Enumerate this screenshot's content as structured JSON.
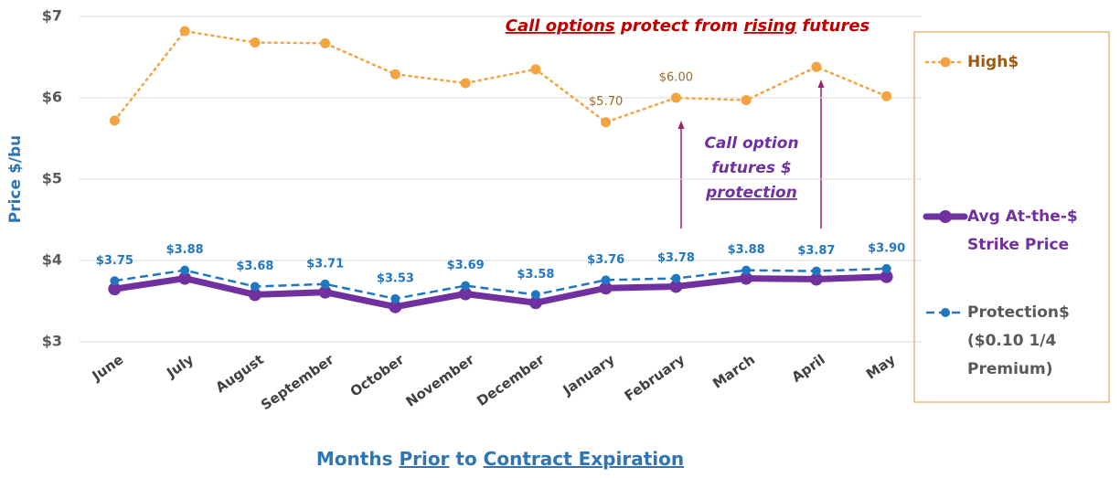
{
  "chart_data": {
    "type": "line",
    "y_label": "Price $/bu",
    "x_label_parts": [
      {
        "text": "Months "
      },
      {
        "text": "Prior",
        "underline": true
      },
      {
        "text": " to "
      },
      {
        "text": "Contract Expiration",
        "underline": true
      }
    ],
    "categories": [
      "June",
      "July",
      "August",
      "September",
      "October",
      "November",
      "December",
      "January",
      "February",
      "March",
      "April",
      "May"
    ],
    "ylim": [
      3,
      7
    ],
    "yticks": [
      {
        "value": 3,
        "label": "$3"
      },
      {
        "value": 4,
        "label": "$4"
      },
      {
        "value": 5,
        "label": "$5"
      },
      {
        "value": 6,
        "label": "$6"
      },
      {
        "value": 7,
        "label": "$7"
      }
    ],
    "grid": true,
    "series": [
      {
        "name": "High$",
        "color": "#f4a340",
        "dash": "dotted",
        "values": [
          5.72,
          6.82,
          6.68,
          6.67,
          6.29,
          6.18,
          6.35,
          5.7,
          6.0,
          5.97,
          6.38,
          6.02
        ],
        "value_labels": [
          null,
          null,
          null,
          null,
          null,
          null,
          null,
          "$5.70",
          "$6.00",
          null,
          null,
          null
        ]
      },
      {
        "name": "Avg At-the-$ Strike Price",
        "color": "#7030a0",
        "dash": "solid",
        "values": [
          3.65,
          3.78,
          3.58,
          3.61,
          3.43,
          3.59,
          3.48,
          3.66,
          3.68,
          3.78,
          3.77,
          3.8
        ]
      },
      {
        "name": "Protection$ ($0.10 1/4 Premium)",
        "color": "#1f77c4",
        "dash": "dashed",
        "values": [
          3.75,
          3.88,
          3.68,
          3.71,
          3.53,
          3.69,
          3.58,
          3.76,
          3.78,
          3.88,
          3.87,
          3.9
        ],
        "value_labels": [
          "$3.75",
          "$3.88",
          "$3.68",
          "$3.71",
          "$3.53",
          "$3.69",
          "$3.58",
          "$3.76",
          "$3.78",
          "$3.88",
          "$3.87",
          "$3.90"
        ]
      }
    ],
    "annotations": [
      {
        "color": "#c00000",
        "lines": [
          [
            {
              "text": "Call options",
              "underline": true
            },
            {
              "text": " protect from "
            },
            {
              "text": "rising",
              "underline": true
            },
            {
              "text": " futures"
            }
          ]
        ]
      },
      {
        "color": "#7030a0",
        "lines": [
          [
            {
              "text": "Call option"
            }
          ],
          [
            {
              "text": "futures $"
            }
          ],
          [
            {
              "text": "protection",
              "underline": true
            }
          ]
        ]
      }
    ]
  }
}
